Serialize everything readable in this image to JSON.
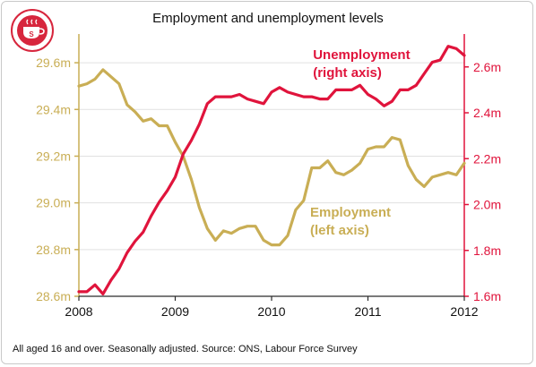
{
  "title": "Employment and unemployment levels",
  "source": "All aged 16 and over. Seasonally adjusted. Source: ONS, Labour Force Survey",
  "colors": {
    "employment": "#c9ae55",
    "unemployment": "#e0143c",
    "axis": "#2b2b2b",
    "grid": "#e1e1e1",
    "logo": "#d7263d"
  },
  "logo_icon": "coffee-cup-logo-icon",
  "chart_data": {
    "type": "line",
    "title": "Employment and unemployment levels",
    "x_ticks": [
      2008,
      2009,
      2010,
      2011,
      2012
    ],
    "x_tick_labels": [
      "2008",
      "2009",
      "2010",
      "2011",
      "2012"
    ],
    "xlim": [
      2008,
      2012
    ],
    "grid": "horizontal",
    "left_axis": {
      "ylim": [
        28.6,
        29.7
      ],
      "ticks": [
        28.6,
        28.8,
        29.0,
        29.2,
        29.4,
        29.6
      ],
      "tick_labels": [
        "28.6m",
        "28.8m",
        "29.0m",
        "29.2m",
        "29.4m",
        "29.6m"
      ]
    },
    "right_axis": {
      "ylim": [
        1.6,
        2.72
      ],
      "ticks": [
        1.6,
        1.8,
        2.0,
        2.2,
        2.4,
        2.6
      ],
      "tick_labels": [
        "1.6m",
        "1.8m",
        "2.0m",
        "2.2m",
        "2.4m",
        "2.6m"
      ]
    },
    "series": [
      {
        "name": "Employment",
        "label": [
          "Employment",
          "(left axis)"
        ],
        "axis": "left",
        "x": [
          2008.0,
          2008.083,
          2008.167,
          2008.25,
          2008.333,
          2008.417,
          2008.5,
          2008.583,
          2008.667,
          2008.75,
          2008.833,
          2008.917,
          2009.0,
          2009.083,
          2009.167,
          2009.25,
          2009.333,
          2009.417,
          2009.5,
          2009.583,
          2009.667,
          2009.75,
          2009.833,
          2009.917,
          2010.0,
          2010.083,
          2010.167,
          2010.25,
          2010.333,
          2010.417,
          2010.5,
          2010.583,
          2010.667,
          2010.75,
          2010.833,
          2010.917,
          2011.0,
          2011.083,
          2011.167,
          2011.25,
          2011.333,
          2011.417,
          2011.5,
          2011.583,
          2011.667,
          2011.75,
          2011.833,
          2011.917,
          2012.0
        ],
        "y": [
          29.5,
          29.51,
          29.53,
          29.57,
          29.54,
          29.51,
          29.42,
          29.39,
          29.35,
          29.36,
          29.33,
          29.33,
          29.26,
          29.2,
          29.1,
          28.98,
          28.89,
          28.84,
          28.88,
          28.87,
          28.89,
          28.9,
          28.9,
          28.84,
          28.82,
          28.82,
          28.86,
          28.97,
          29.01,
          29.15,
          29.15,
          29.18,
          29.13,
          29.12,
          29.14,
          29.17,
          29.23,
          29.24,
          29.24,
          29.28,
          29.27,
          29.16,
          29.1,
          29.07,
          29.11,
          29.12,
          29.13,
          29.12,
          29.17
        ]
      },
      {
        "name": "Unemployment",
        "label": [
          "Unemployment",
          "(right axis)"
        ],
        "axis": "right",
        "x": [
          2008.0,
          2008.083,
          2008.167,
          2008.25,
          2008.333,
          2008.417,
          2008.5,
          2008.583,
          2008.667,
          2008.75,
          2008.833,
          2008.917,
          2009.0,
          2009.083,
          2009.167,
          2009.25,
          2009.333,
          2009.417,
          2009.5,
          2009.583,
          2009.667,
          2009.75,
          2009.833,
          2009.917,
          2010.0,
          2010.083,
          2010.167,
          2010.25,
          2010.333,
          2010.417,
          2010.5,
          2010.583,
          2010.667,
          2010.75,
          2010.833,
          2010.917,
          2011.0,
          2011.083,
          2011.167,
          2011.25,
          2011.333,
          2011.417,
          2011.5,
          2011.583,
          2011.667,
          2011.75,
          2011.833,
          2011.917,
          2012.0
        ],
        "y": [
          1.62,
          1.62,
          1.65,
          1.61,
          1.67,
          1.72,
          1.79,
          1.84,
          1.88,
          1.95,
          2.01,
          2.06,
          2.12,
          2.22,
          2.28,
          2.35,
          2.44,
          2.47,
          2.47,
          2.47,
          2.48,
          2.46,
          2.45,
          2.44,
          2.49,
          2.51,
          2.49,
          2.48,
          2.47,
          2.47,
          2.46,
          2.46,
          2.5,
          2.5,
          2.5,
          2.52,
          2.48,
          2.46,
          2.43,
          2.45,
          2.5,
          2.5,
          2.52,
          2.57,
          2.62,
          2.63,
          2.69,
          2.68,
          2.65
        ]
      }
    ]
  }
}
